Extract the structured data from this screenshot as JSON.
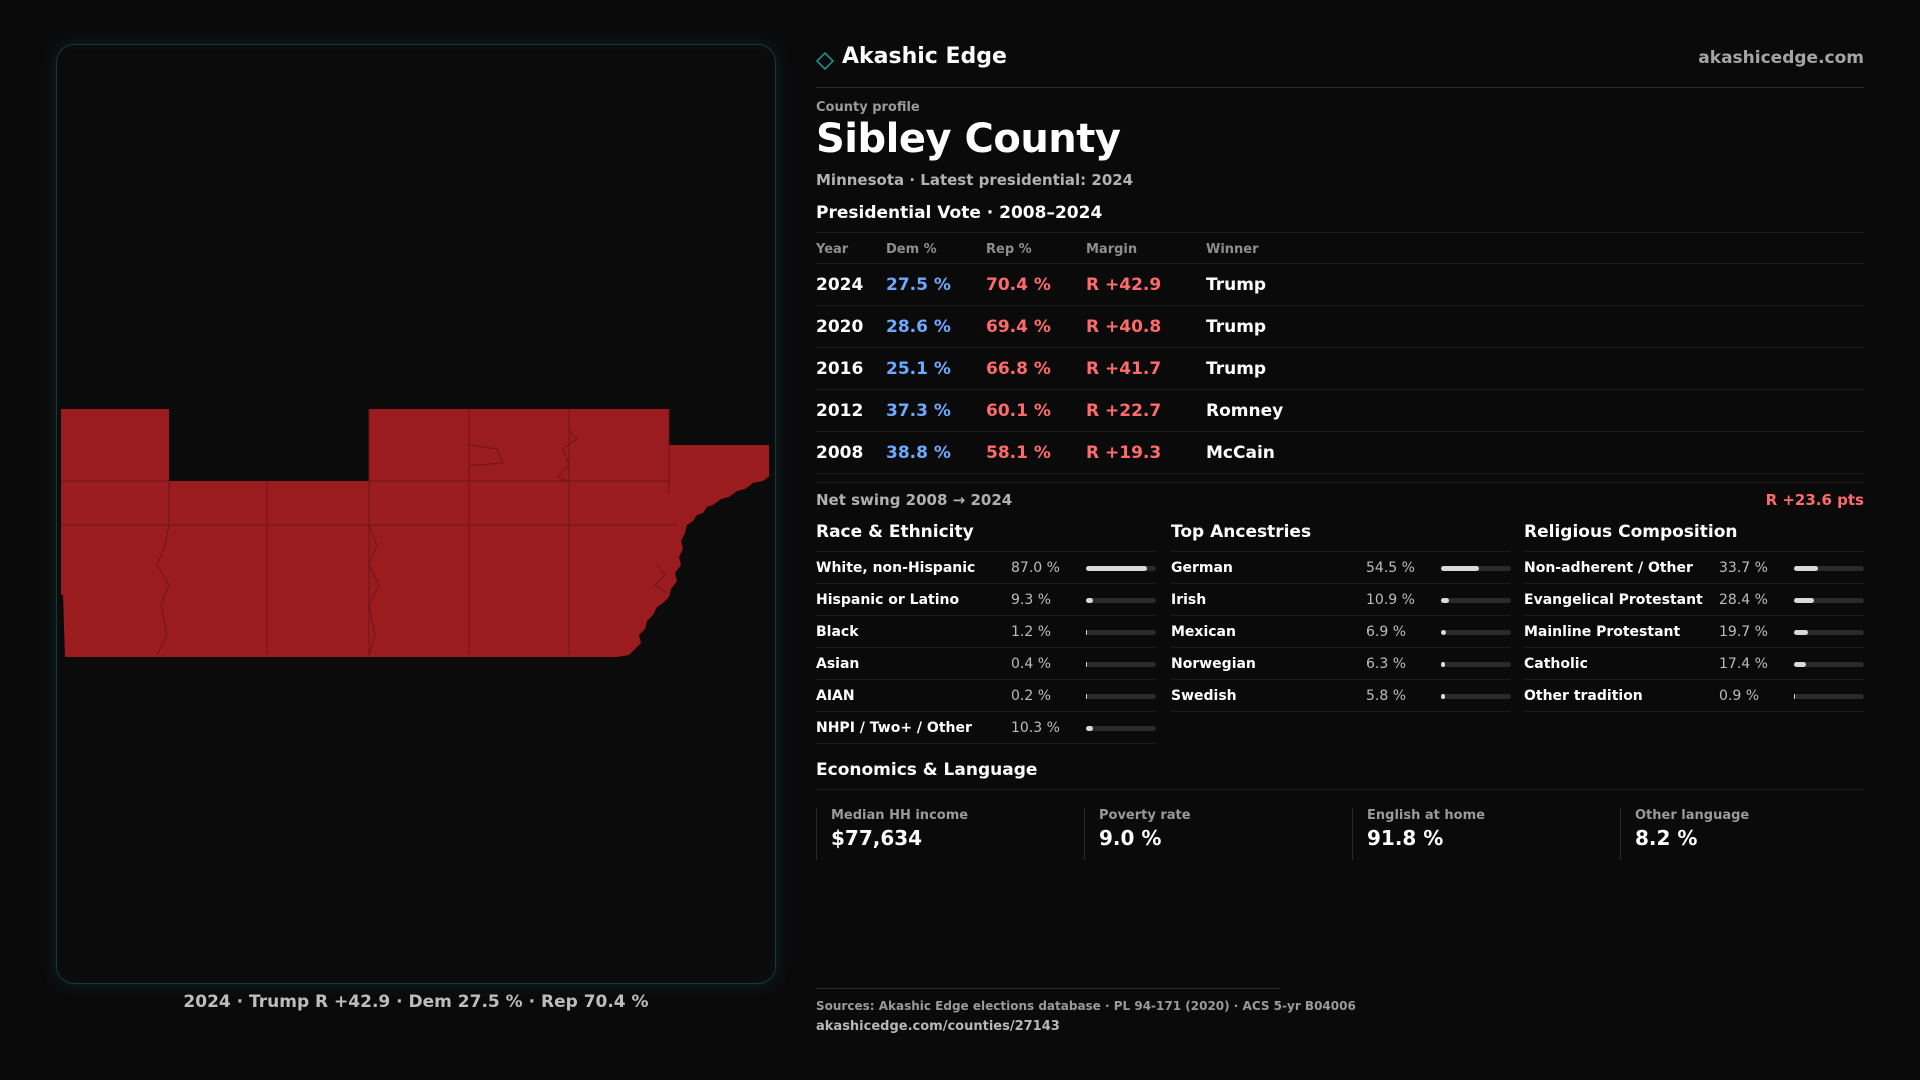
{
  "brand": {
    "name": "Akashic Edge",
    "url": "akashicedge.com"
  },
  "profile": {
    "kicker": "County profile",
    "title": "Sibley County",
    "subtitle": "Minnesota · Latest presidential: 2024"
  },
  "map": {
    "fill_color": "#9b1c1f",
    "caption": "2024 · Trump R +42.9 · Dem 27.5 % · Rep 70.4 %"
  },
  "vote": {
    "title": "Presidential Vote · 2008–2024",
    "headers": {
      "year": "Year",
      "dem": "Dem %",
      "rep": "Rep %",
      "margin": "Margin",
      "winner": "Winner"
    },
    "rows": [
      {
        "year": "2024",
        "dem": "27.5 %",
        "rep": "70.4 %",
        "margin": "R +42.9",
        "winner": "Trump"
      },
      {
        "year": "2020",
        "dem": "28.6 %",
        "rep": "69.4 %",
        "margin": "R +40.8",
        "winner": "Trump"
      },
      {
        "year": "2016",
        "dem": "25.1 %",
        "rep": "66.8 %",
        "margin": "R +41.7",
        "winner": "Trump"
      },
      {
        "year": "2012",
        "dem": "37.3 %",
        "rep": "60.1 %",
        "margin": "R +22.7",
        "winner": "Romney"
      },
      {
        "year": "2008",
        "dem": "38.8 %",
        "rep": "58.1 %",
        "margin": "R +19.3",
        "winner": "McCain"
      }
    ],
    "swing_label": "Net swing 2008 → 2024",
    "swing_value": "R +23.6 pts"
  },
  "race": {
    "title": "Race & Ethnicity",
    "rows": [
      {
        "label": "White, non-Hispanic",
        "pct": "87.0 %",
        "value": 87.0
      },
      {
        "label": "Hispanic or Latino",
        "pct": "9.3 %",
        "value": 9.3
      },
      {
        "label": "Black",
        "pct": "1.2 %",
        "value": 1.2
      },
      {
        "label": "Asian",
        "pct": "0.4 %",
        "value": 0.4
      },
      {
        "label": "AIAN",
        "pct": "0.2 %",
        "value": 0.2
      },
      {
        "label": "NHPI / Two+ / Other",
        "pct": "10.3 %",
        "value": 10.3
      }
    ]
  },
  "ancestry": {
    "title": "Top Ancestries",
    "rows": [
      {
        "label": "German",
        "pct": "54.5 %",
        "value": 54.5
      },
      {
        "label": "Irish",
        "pct": "10.9 %",
        "value": 10.9
      },
      {
        "label": "Mexican",
        "pct": "6.9 %",
        "value": 6.9
      },
      {
        "label": "Norwegian",
        "pct": "6.3 %",
        "value": 6.3
      },
      {
        "label": "Swedish",
        "pct": "5.8 %",
        "value": 5.8
      }
    ]
  },
  "religion": {
    "title": "Religious Composition",
    "rows": [
      {
        "label": "Non-adherent / Other",
        "pct": "33.7 %",
        "value": 33.7
      },
      {
        "label": "Evangelical Protestant",
        "pct": "28.4 %",
        "value": 28.4
      },
      {
        "label": "Mainline Protestant",
        "pct": "19.7 %",
        "value": 19.7
      },
      {
        "label": "Catholic",
        "pct": "17.4 %",
        "value": 17.4
      },
      {
        "label": "Other tradition",
        "pct": "0.9 %",
        "value": 0.9
      }
    ]
  },
  "economics": {
    "title": "Economics & Language",
    "items": [
      {
        "label": "Median HH income",
        "value": "$77,634"
      },
      {
        "label": "Poverty rate",
        "value": "9.0 %"
      },
      {
        "label": "English at home",
        "value": "91.8 %"
      },
      {
        "label": "Other language",
        "value": "8.2 %"
      }
    ]
  },
  "sources": {
    "line1": "Sources: Akashic Edge elections database · PL 94-171 (2020) · ACS 5-yr B04006",
    "line2": "akashicedge.com/counties/27143"
  }
}
